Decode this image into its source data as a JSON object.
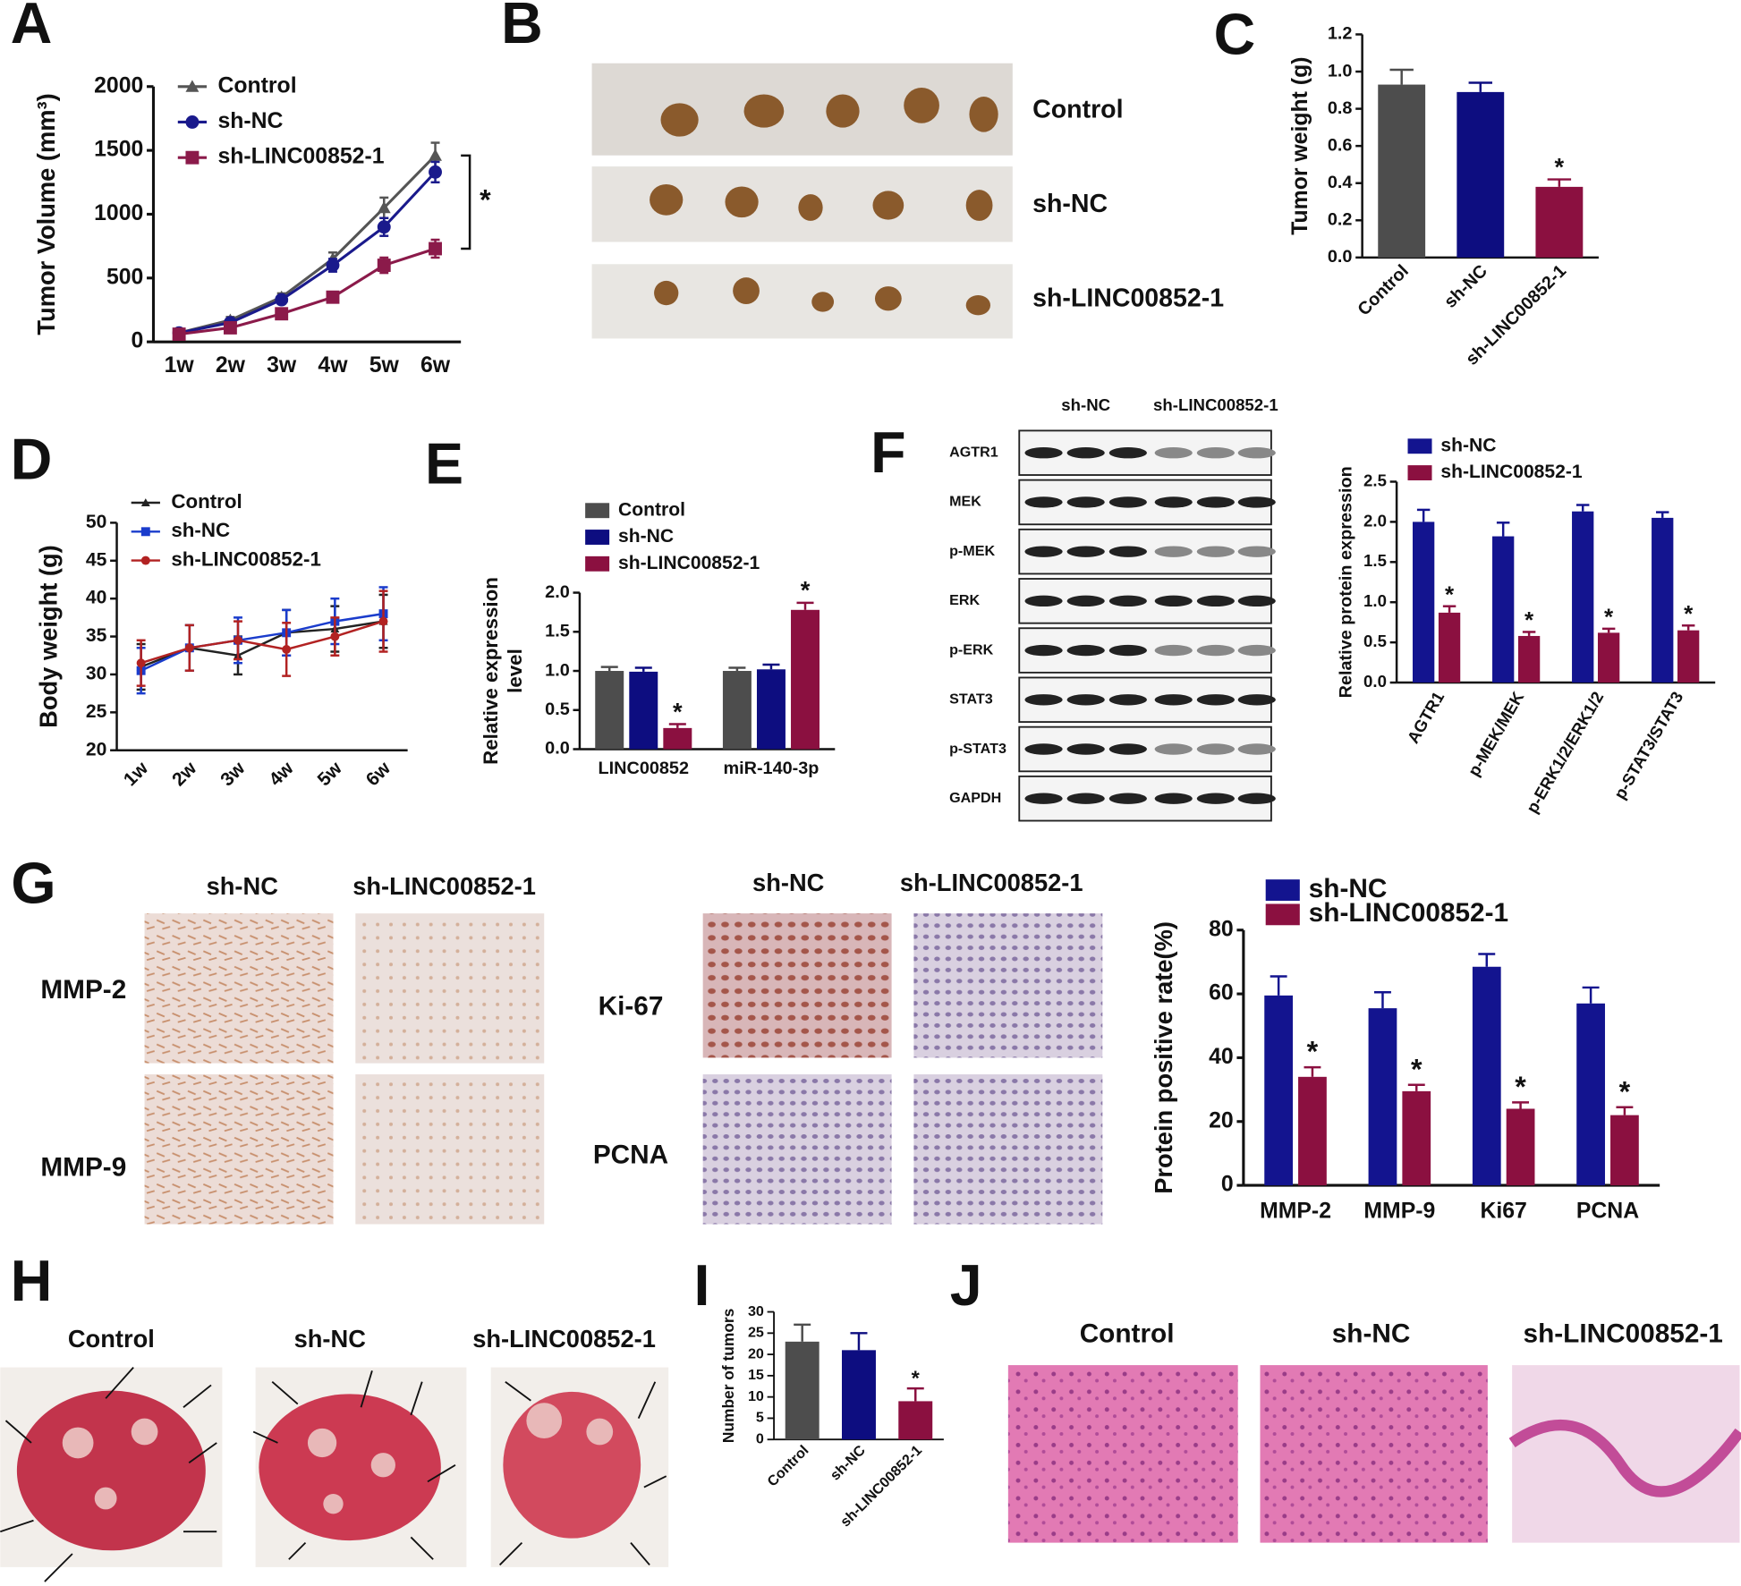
{
  "panel_letters": [
    "A",
    "B",
    "C",
    "D",
    "E",
    "F",
    "G",
    "H",
    "I",
    "J"
  ],
  "panel_b": {
    "labels": [
      "Control",
      "sh-NC",
      "sh-LINC00852-1"
    ]
  },
  "panel_f_blot": {
    "headers": [
      "sh-NC",
      "sh-LINC00852-1"
    ],
    "rows": [
      "AGTR1",
      "MEK",
      "p-MEK",
      "ERK",
      "p-ERK",
      "STAT3",
      "p-STAT3",
      "GAPDH"
    ]
  },
  "panel_g_images": {
    "columns_left": [
      "sh-NC",
      "sh-LINC00852-1"
    ],
    "columns_right": [
      "sh-NC",
      "sh-LINC00852-1"
    ],
    "rows_left": [
      "MMP-2",
      "MMP-9"
    ],
    "rows_right": [
      "Ki-67",
      "PCNA"
    ]
  },
  "panel_h": {
    "labels": [
      "Control",
      "sh-NC",
      "sh-LINC00852-1"
    ]
  },
  "panel_j": {
    "labels": [
      "Control",
      "sh-NC",
      "sh-LINC00852-1"
    ]
  },
  "chart_data": [
    {
      "type": "line",
      "ylabel": "Tumor Volume (mm³)",
      "categories": [
        "1w",
        "2w",
        "3w",
        "4w",
        "5w",
        "6w"
      ],
      "series": [
        {
          "name": "Control",
          "color": "#555555",
          "marker": "triangle",
          "values": [
            70,
            170,
            350,
            650,
            1050,
            1460
          ],
          "errors": [
            15,
            25,
            30,
            50,
            80,
            100
          ]
        },
        {
          "name": "sh-NC",
          "color": "#1a1a8c",
          "marker": "circle",
          "values": [
            70,
            150,
            330,
            600,
            900,
            1330
          ],
          "errors": [
            15,
            25,
            30,
            50,
            70,
            80
          ]
        },
        {
          "name": "sh-LINC00852-1",
          "color": "#8b1a4a",
          "marker": "square",
          "values": [
            60,
            110,
            220,
            350,
            600,
            730
          ],
          "errors": [
            10,
            20,
            30,
            40,
            60,
            70
          ]
        }
      ],
      "ylim": [
        0,
        2000
      ],
      "yticks": [
        0,
        500,
        1000,
        1500,
        2000
      ],
      "legend": "upper left",
      "annotation": "*"
    },
    {
      "type": "bar",
      "ylabel": "Tumor weight (g)",
      "categories": [
        "Control",
        "sh-NC",
        "sh-LINC00852-1"
      ],
      "values": [
        0.93,
        0.89,
        0.38
      ],
      "errors": [
        0.08,
        0.05,
        0.04
      ],
      "colors": [
        "#4d4d4d",
        "#0d0d80",
        "#8b1040"
      ],
      "labels": [
        null,
        null,
        "*"
      ],
      "ylim": [
        0,
        1.2
      ],
      "yticks": [
        {
          "value": 0,
          "label": "0.0"
        },
        0.2,
        0.4,
        0.6,
        0.8,
        {
          "value": 1,
          "label": "1.0"
        },
        1.2
      ]
    },
    {
      "type": "line",
      "ylabel": "Body weight (g)",
      "categories": [
        "1w",
        "2w",
        "3w",
        "4w",
        "5w",
        "6w"
      ],
      "series": [
        {
          "name": "Control",
          "color": "#222222",
          "marker": "triangle",
          "values": [
            31,
            33.5,
            32.5,
            35.5,
            36,
            37
          ],
          "errors": [
            3,
            3,
            2.5,
            3,
            3,
            3.5
          ]
        },
        {
          "name": "sh-NC",
          "color": "#1a3ccc",
          "marker": "square",
          "values": [
            30.5,
            33.5,
            34.5,
            35.5,
            37,
            38
          ],
          "errors": [
            3,
            3,
            3,
            3,
            3,
            3.5
          ]
        },
        {
          "name": "sh-LINC00852-1",
          "color": "#b22222",
          "marker": "circle",
          "values": [
            31.5,
            33.5,
            34.5,
            33.3,
            35,
            37
          ],
          "errors": [
            3,
            3,
            2.5,
            3.5,
            2.5,
            4
          ]
        }
      ],
      "ylim": [
        20,
        50
      ],
      "yticks": [
        20,
        25,
        30,
        35,
        40,
        45,
        50
      ],
      "legend": "upper left"
    },
    {
      "type": "bar",
      "ylabel": [
        "Relative expression",
        "level"
      ],
      "categories": [
        "LINC00852",
        "miR-140-3p"
      ],
      "series": [
        {
          "name": "Control",
          "color": "#4d4d4d",
          "values": [
            1.0,
            1.0
          ],
          "errors": [
            0.05,
            0.04
          ]
        },
        {
          "name": "sh-NC",
          "color": "#0d0d80",
          "values": [
            0.99,
            1.02
          ],
          "errors": [
            0.05,
            0.06
          ]
        },
        {
          "name": "sh-LINC00852-1",
          "color": "#8b1040",
          "values": [
            0.27,
            1.78
          ],
          "errors": [
            0.05,
            0.09
          ],
          "labels": [
            "*",
            "*"
          ]
        }
      ],
      "ylim": [
        0,
        2
      ],
      "yticks": [
        {
          "value": 0,
          "label": "0.0"
        },
        0.5,
        {
          "value": 1,
          "label": "1.0"
        },
        1.5,
        {
          "value": 2,
          "label": "2.0"
        }
      ],
      "legend": "top"
    },
    {
      "type": "bar",
      "ylabel": "Relative protein expression",
      "categories": [
        "AGTR1",
        "p-MEK/MEK",
        "p-ERK1/2/ERK1/2",
        "p-STAT3/STAT3"
      ],
      "series": [
        {
          "name": "sh-NC",
          "color": "#13148f",
          "values": [
            2.0,
            1.82,
            2.13,
            2.05
          ],
          "errors": [
            0.15,
            0.17,
            0.08,
            0.07
          ]
        },
        {
          "name": "sh-LINC00852-1",
          "color": "#8b1040",
          "values": [
            0.87,
            0.58,
            0.62,
            0.65
          ],
          "errors": [
            0.08,
            0.05,
            0.05,
            0.06
          ],
          "labels": [
            "*",
            "*",
            "*",
            "*"
          ]
        }
      ],
      "ylim": [
        0,
        2.5
      ],
      "yticks": [
        {
          "value": 0,
          "label": "0.0"
        },
        0.5,
        {
          "value": 1,
          "label": "1.0"
        },
        1.5,
        {
          "value": 2,
          "label": "2.0"
        },
        2.5
      ],
      "legend": "top"
    },
    {
      "type": "bar",
      "ylabel": "Protein positive rate(%)",
      "categories": [
        "MMP-2",
        "MMP-9",
        "Ki67",
        "PCNA"
      ],
      "series": [
        {
          "name": "sh-NC",
          "color": "#13148f",
          "values": [
            59.5,
            55.5,
            68.5,
            57
          ],
          "errors": [
            6,
            5,
            4,
            5
          ]
        },
        {
          "name": "sh-LINC00852-1",
          "color": "#8b1040",
          "values": [
            34,
            29.5,
            24,
            22
          ],
          "errors": [
            3,
            2,
            2,
            2.5
          ],
          "labels": [
            "*",
            "*",
            "*",
            "*"
          ]
        }
      ],
      "ylim": [
        0,
        80
      ],
      "yticks": [
        0,
        20,
        40,
        60,
        80
      ],
      "legend": "top"
    },
    {
      "type": "bar",
      "ylabel": "Number of tumors",
      "categories": [
        "Control",
        "sh-NC",
        "sh-LINC00852-1"
      ],
      "values": [
        23,
        21,
        9
      ],
      "errors": [
        4,
        4,
        3
      ],
      "colors": [
        "#4d4d4d",
        "#0d0d80",
        "#8b1040"
      ],
      "labels": [
        null,
        null,
        "*"
      ],
      "ylim": [
        0,
        30
      ],
      "yticks": [
        0,
        5,
        10,
        15,
        20,
        25,
        30
      ]
    }
  ]
}
